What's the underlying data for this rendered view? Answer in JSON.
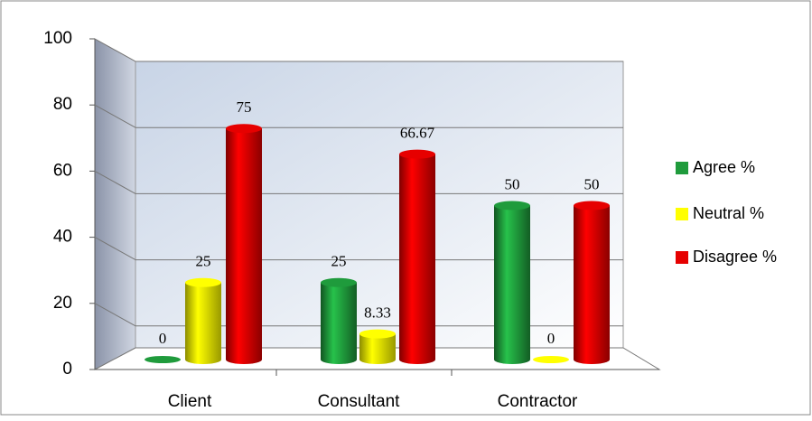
{
  "chart_data": {
    "type": "bar3d",
    "categories": [
      "Client",
      "Consultant",
      "Contractor"
    ],
    "series": [
      {
        "name": "Agree %",
        "color": "#1f9b3c",
        "values": [
          0,
          25,
          50
        ]
      },
      {
        "name": "Neutral %",
        "color": "#ffff00",
        "values": [
          25,
          8.33,
          0
        ]
      },
      {
        "name": "Disagree %",
        "color": "#e60000",
        "values": [
          75,
          66.67,
          50
        ]
      }
    ],
    "ylim": [
      0,
      100
    ],
    "yticks": [
      0,
      20,
      40,
      60,
      80,
      100
    ],
    "grid": true,
    "legend": "right"
  }
}
